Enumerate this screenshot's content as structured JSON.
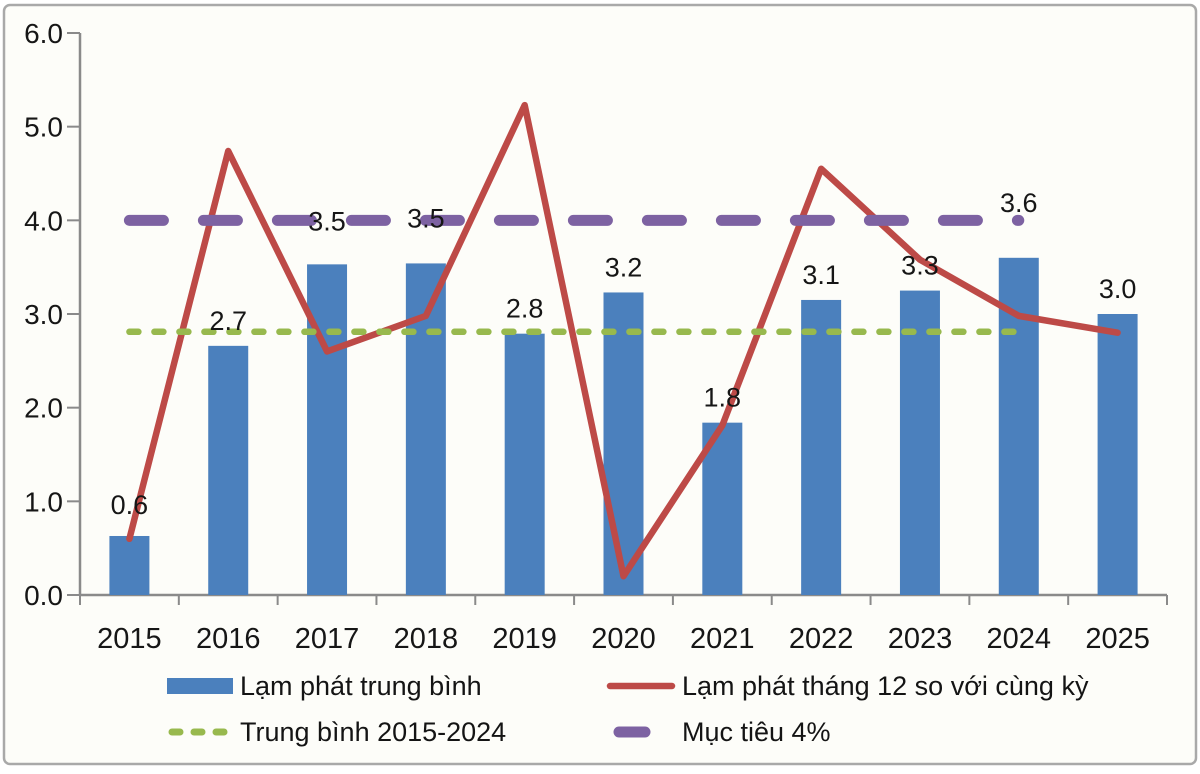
{
  "window": {
    "background": "#fdfdf9",
    "border_color": "#a9a9a9",
    "axis_color": "#8a8a8a",
    "text_color": "#161616"
  },
  "chart_data": {
    "type": "combo",
    "title": "",
    "categories": [
      "2015",
      "2016",
      "2017",
      "2018",
      "2019",
      "2020",
      "2021",
      "2022",
      "2023",
      "2024",
      "2025"
    ],
    "y_axis": {
      "min": 0,
      "max": 6,
      "tick_step": 1,
      "tick_labels": [
        "0.0",
        "1.0",
        "2.0",
        "3.0",
        "4.0",
        "5.0",
        "6.0"
      ]
    },
    "grid": "off",
    "legend_position": "bottom",
    "series": [
      {
        "name": "Lạm phát trung bình",
        "type": "bar",
        "color": "#4b80bd",
        "values": [
          0.63,
          2.66,
          3.53,
          3.54,
          2.79,
          3.23,
          1.84,
          3.15,
          3.25,
          3.6,
          3.0
        ],
        "data_labels": [
          "0.6",
          "2.7",
          "3.5",
          "3.5",
          "2.8",
          "3.2",
          "1.8",
          "3.1",
          "3.3",
          "3.6",
          "3.0"
        ],
        "label_offsets": [
          -6,
          0,
          -18,
          -20,
          0,
          0,
          0,
          0,
          0,
          -30,
          0
        ]
      },
      {
        "name": "Lạm phát tháng 12 so với cùng kỳ",
        "type": "line",
        "color": "#bd4a47",
        "values": [
          0.6,
          4.74,
          2.6,
          2.98,
          5.23,
          0.2,
          1.81,
          4.55,
          3.58,
          2.98,
          2.8
        ]
      },
      {
        "name": "Trung bình 2015-2024",
        "type": "hline_dashed",
        "dash": "short",
        "color": "#98b94e",
        "value": 2.81,
        "span_categories": [
          "2015",
          "2024"
        ]
      },
      {
        "name": "Mục tiêu 4%",
        "type": "hline_dashed",
        "dash": "long",
        "color": "#7d62a2",
        "value": 4.0,
        "span_categories": [
          "2015",
          "2024"
        ]
      }
    ]
  }
}
